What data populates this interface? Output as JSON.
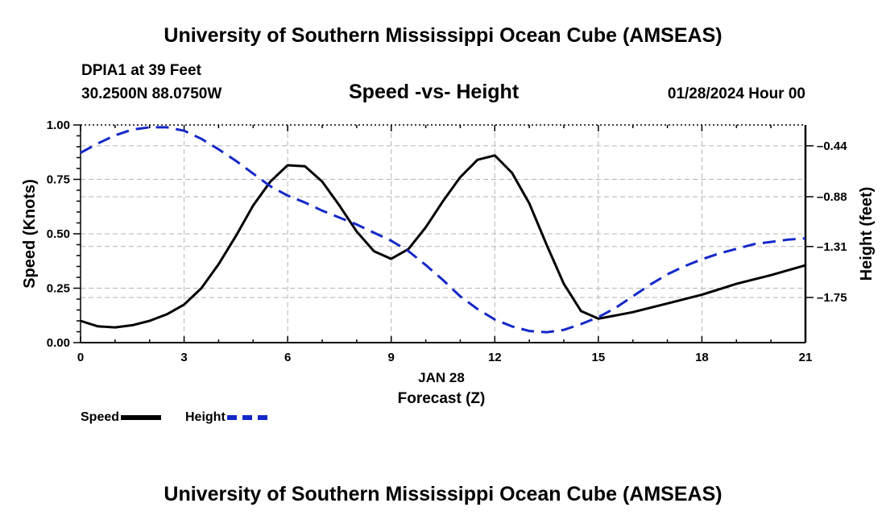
{
  "title": "University of Southern Mississippi Ocean Cube (AMSEAS)",
  "footer_title": "University of Southern Mississippi Ocean Cube (AMSEAS)",
  "station": "DPIA1 at 39 Feet",
  "coords": "30.2500N  88.0750W",
  "subtitle": "Speed -vs- Height",
  "datetime": "01/28/2024 Hour 00",
  "legend": {
    "speed_label": "Speed",
    "height_label": "Height"
  },
  "colors": {
    "speed": "#000000",
    "height": "#1428c8",
    "grid": "#b4b4b4"
  },
  "chart_data": {
    "type": "line",
    "title": "Speed -vs- Height",
    "xlabel": "Forecast (Z)",
    "xlabel_date": "JAN 28",
    "ylabel": "Speed (Knots)",
    "y2label": "Height (feet)",
    "xlim": [
      0,
      21
    ],
    "ylim": [
      0,
      1.0
    ],
    "y2lim": [
      -2.14,
      -0.26
    ],
    "x_ticks": [
      0,
      3,
      6,
      9,
      12,
      15,
      18,
      21
    ],
    "y_ticks": [
      "0.00",
      "0.25",
      "0.50",
      "0.75",
      "1.00"
    ],
    "y2_ticks": [
      "-0.44",
      "-0.88",
      "-1.31",
      "-1.75"
    ],
    "grid": true,
    "series": [
      {
        "name": "Speed",
        "axis": "left",
        "style": "solid",
        "x": [
          0,
          0.5,
          1,
          1.5,
          2,
          2.5,
          3,
          3.5,
          4,
          4.5,
          5,
          5.5,
          6,
          6.5,
          7,
          7.5,
          8,
          8.5,
          9,
          9.5,
          10,
          10.5,
          11,
          11.5,
          12,
          12.5,
          13,
          13.5,
          14,
          14.5,
          15,
          15.5,
          16,
          17,
          18,
          19,
          20,
          21
        ],
        "values": [
          0.1,
          0.075,
          0.07,
          0.08,
          0.1,
          0.13,
          0.175,
          0.25,
          0.36,
          0.49,
          0.63,
          0.74,
          0.815,
          0.81,
          0.74,
          0.63,
          0.51,
          0.42,
          0.385,
          0.43,
          0.53,
          0.65,
          0.76,
          0.84,
          0.86,
          0.78,
          0.64,
          0.45,
          0.27,
          0.145,
          0.11,
          0.125,
          0.14,
          0.18,
          0.22,
          0.27,
          0.31,
          0.355
        ]
      },
      {
        "name": "Height",
        "axis": "right",
        "style": "dashed",
        "x": [
          0,
          0.5,
          1,
          1.5,
          2,
          2.5,
          3,
          3.5,
          4,
          4.5,
          5,
          5.5,
          6,
          6.5,
          7,
          7.5,
          8,
          8.5,
          9,
          9.5,
          10,
          10.5,
          11,
          11.5,
          12,
          12.5,
          13,
          13.5,
          14,
          14.5,
          15,
          15.5,
          16,
          16.5,
          17,
          17.5,
          18,
          18.5,
          19,
          19.5,
          20,
          20.5,
          21
        ],
        "values": [
          -0.5,
          -0.42,
          -0.35,
          -0.3,
          -0.28,
          -0.28,
          -0.31,
          -0.38,
          -0.47,
          -0.57,
          -0.68,
          -0.79,
          -0.87,
          -0.93,
          -1.0,
          -1.06,
          -1.12,
          -1.19,
          -1.26,
          -1.35,
          -1.47,
          -1.6,
          -1.74,
          -1.85,
          -1.94,
          -2.0,
          -2.04,
          -2.05,
          -2.03,
          -1.98,
          -1.92,
          -1.84,
          -1.74,
          -1.64,
          -1.55,
          -1.48,
          -1.42,
          -1.37,
          -1.33,
          -1.29,
          -1.27,
          -1.25,
          -1.24
        ]
      }
    ]
  }
}
